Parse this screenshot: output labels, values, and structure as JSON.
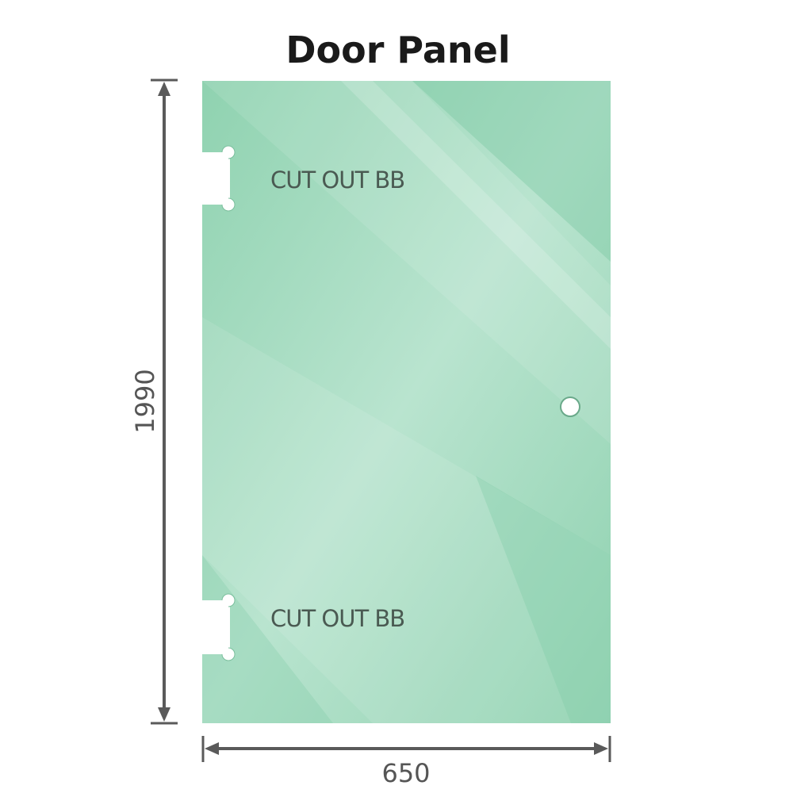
{
  "title": "Door Panel",
  "panel": {
    "glass_color": "#86ceab",
    "cutouts": [
      {
        "label": "CUT OUT BB"
      },
      {
        "label": "CUT OUT BB"
      }
    ]
  },
  "dimensions": {
    "height": "1990",
    "width": "650",
    "line_color": "#5a5a5a"
  }
}
